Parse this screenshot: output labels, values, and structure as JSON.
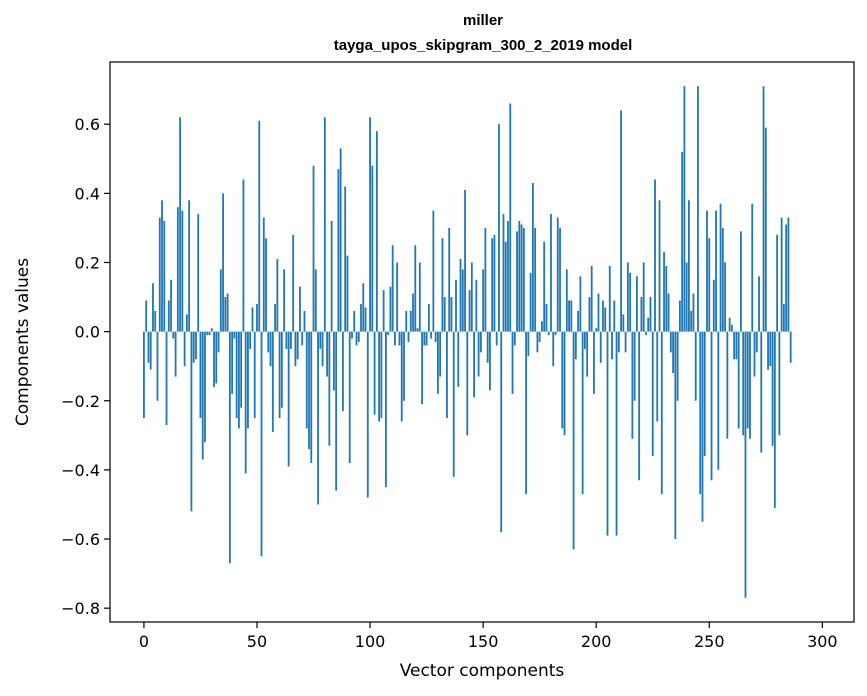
{
  "chart_data": {
    "type": "bar",
    "title": "miller",
    "subtitle": "tayga_upos_skipgram_300_2_2019 model",
    "xlabel": "Vector components",
    "ylabel": "Components values",
    "xlim": [
      -15,
      314
    ],
    "ylim": [
      -0.84,
      0.78
    ],
    "xticks": [
      0,
      50,
      100,
      150,
      200,
      250,
      300
    ],
    "yticks": [
      -0.8,
      -0.6,
      -0.4,
      -0.2,
      0.0,
      0.2,
      0.4,
      0.6
    ],
    "xtick_labels": [
      "0",
      "50",
      "100",
      "150",
      "200",
      "250",
      "300"
    ],
    "ytick_labels": [
      "−0.8",
      "−0.6",
      "−0.4",
      "−0.2",
      "0.0",
      "0.2",
      "0.4",
      "0.6"
    ],
    "grid": false,
    "color": "#1f77b4",
    "values": [
      -0.25,
      0.09,
      -0.09,
      -0.11,
      0.14,
      0.06,
      -0.2,
      0.33,
      0.38,
      0.32,
      -0.27,
      0.09,
      0.15,
      -0.02,
      -0.13,
      0.36,
      0.62,
      0.35,
      -0.1,
      0.05,
      0.38,
      -0.52,
      -0.09,
      -0.08,
      0.34,
      -0.25,
      -0.37,
      -0.32,
      -0.01,
      -0.01,
      0.01,
      -0.16,
      -0.15,
      -0.06,
      0.18,
      0.4,
      0.1,
      0.11,
      -0.67,
      -0.18,
      -0.02,
      -0.25,
      -0.28,
      -0.22,
      0.44,
      -0.41,
      -0.28,
      -0.05,
      0.07,
      -0.25,
      0.08,
      0.61,
      -0.65,
      0.33,
      0.27,
      -0.06,
      -0.1,
      -0.29,
      0.08,
      0.21,
      -0.25,
      -0.22,
      0.18,
      -0.05,
      -0.39,
      -0.05,
      0.28,
      -0.1,
      -0.08,
      0.13,
      -0.04,
      0.06,
      -0.28,
      -0.34,
      -0.38,
      0.48,
      0.18,
      -0.5,
      -0.05,
      -0.1,
      0.62,
      -0.13,
      -0.33,
      0.32,
      -0.17,
      -0.46,
      0.47,
      0.53,
      -0.23,
      0.42,
      0.22,
      -0.38,
      -0.02,
      0.06,
      -0.04,
      -0.03,
      0.08,
      0.14,
      0.07,
      -0.48,
      0.62,
      0.48,
      -0.24,
      0.58,
      -0.26,
      -0.25,
      0.12,
      -0.45,
      -0.01,
      0.13,
      0.25,
      -0.04,
      0.2,
      -0.04,
      -0.26,
      -0.2,
      0.06,
      -0.03,
      0.06,
      0.11,
      0.25,
      0.01,
      0.2,
      -0.21,
      -0.04,
      -0.04,
      0.08,
      -0.02,
      0.35,
      -0.03,
      -0.18,
      -0.13,
      0.27,
      0.1,
      -0.25,
      0.3,
      0.1,
      -0.42,
      0.15,
      -0.16,
      0.21,
      0.18,
      0.41,
      -0.3,
      0.12,
      0.2,
      -0.19,
      0.15,
      -0.13,
      -0.06,
      0.18,
      0.3,
      -0.09,
      -0.17,
      0.27,
      0.28,
      -0.04,
      0.6,
      -0.58,
      0.34,
      0.26,
      0.32,
      0.66,
      -0.18,
      -0.04,
      0.29,
      0.32,
      0.31,
      0.3,
      -0.47,
      -0.07,
      0.17,
      0.43,
      0.3,
      -0.06,
      -0.03,
      0.03,
      0.26,
      0.08,
      -0.01,
      0.34,
      -0.1,
      -0.01,
      0.33,
      0.3,
      -0.28,
      -0.3,
      0.18,
      0.09,
      0.09,
      -0.63,
      -0.08,
      0.06,
      0.16,
      -0.47,
      -0.05,
      -0.13,
      0.1,
      0.19,
      -0.18,
      0.01,
      0.11,
      -0.09,
      0.09,
      0.07,
      -0.59,
      0.19,
      -0.08,
      0.09,
      -0.59,
      -0.06,
      0.64,
      0.05,
      -0.06,
      0.2,
      0.17,
      -0.31,
      -0.2,
      0.16,
      -0.43,
      0.1,
      0.2,
      -0.01,
      0.04,
      0.1,
      -0.36,
      0.44,
      -0.26,
      0.38,
      -0.47,
      0.23,
      0.19,
      0.11,
      -0.06,
      -0.12,
      -0.6,
      -0.2,
      0.09,
      0.52,
      0.71,
      0.2,
      0.38,
      0.06,
      0.11,
      -0.2,
      0.71,
      -0.47,
      -0.55,
      -0.36,
      0.35,
      0.27,
      -0.43,
      0.15,
      0.35,
      -0.4,
      0.37,
      0.3,
      0.2,
      -0.31,
      0.04,
      0.02,
      -0.08,
      -0.08,
      -0.28,
      0.29,
      -0.3,
      -0.77,
      -0.28,
      -0.31,
      0.37,
      -0.13,
      -0.06,
      0.16,
      -0.35,
      0.71,
      0.59,
      -0.11,
      -0.1,
      -0.33,
      -0.51,
      0.28,
      -0.3,
      0.33,
      0.08,
      0.31,
      0.33,
      -0.09
    ]
  }
}
